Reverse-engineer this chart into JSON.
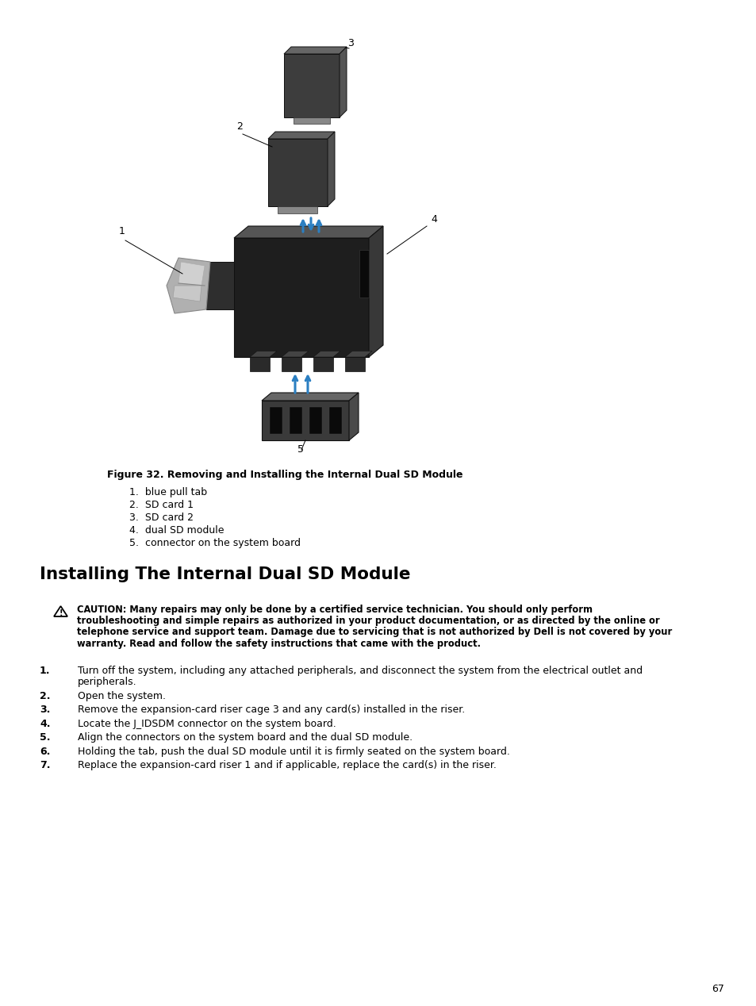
{
  "page_bg": "#ffffff",
  "figure_caption": "Figure 32. Removing and Installing the Internal Dual SD Module",
  "figure_labels": [
    "1.  blue pull tab",
    "2.  SD card 1",
    "3.  SD card 2",
    "4.  dual SD module",
    "5.  connector on the system board"
  ],
  "section_title": "Installing The Internal Dual SD Module",
  "caution_lines": [
    "CAUTION: Many repairs may only be done by a certified service technician. You should only perform",
    "troubleshooting and simple repairs as authorized in your product documentation, or as directed by the online or",
    "telephone service and support team. Damage due to servicing that is not authorized by Dell is not covered by your",
    "warranty. Read and follow the safety instructions that came with the product."
  ],
  "step1_lines": [
    "Turn off the system, including any attached peripherals, and disconnect the system from the electrical outlet and",
    "peripherals."
  ],
  "steps_2to7": [
    "Open the system.",
    "Remove the expansion-card riser cage 3 and any card(s) installed in the riser.",
    "Locate the J_IDSDM connector on the system board.",
    "Align the connectors on the system board and the dual SD module.",
    "Holding the tab, push the dual SD module until it is firmly seated on the system board.",
    "Replace the expansion-card riser 1 and if applicable, replace the card(s) in the riser."
  ],
  "page_number": "67",
  "text_color": "#000000",
  "blue_arrow": "#2B7FC2",
  "dark_part": "#2a2a2a",
  "mid_part": "#4a4a4a",
  "light_part": "#7a7a7a",
  "silver": "#b8b8b8",
  "white_part": "#d8d8d8",
  "body_fs": 9.0,
  "caption_fs": 9.0,
  "title_fs": 15.5,
  "label_fs": 9.0
}
